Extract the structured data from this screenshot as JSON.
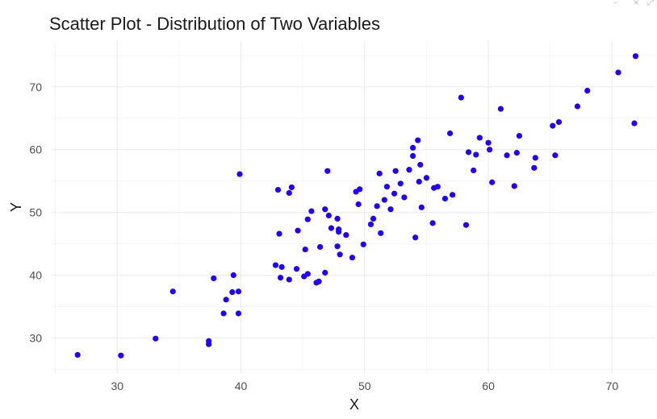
{
  "chart_data": {
    "type": "scatter",
    "title": "Scatter Plot - Distribution of Two Variables",
    "xlabel": "X",
    "ylabel": "Y",
    "xlim": [
      24.7,
      73.5
    ],
    "ylim": [
      24.4,
      77.3
    ],
    "xticks": [
      30,
      40,
      50,
      60,
      70
    ],
    "yticks": [
      30,
      40,
      50,
      60,
      70
    ],
    "grid": true,
    "legend": "none",
    "point_color": "#1f00ff",
    "series": [
      {
        "points": [
          [
            26.8,
            27.3
          ],
          [
            30.3,
            27.2
          ],
          [
            33.1,
            29.9
          ],
          [
            34.5,
            37.4
          ],
          [
            37.4,
            29.0
          ],
          [
            37.4,
            29.5
          ],
          [
            37.8,
            39.5
          ],
          [
            38.6,
            33.9
          ],
          [
            38.8,
            36.1
          ],
          [
            39.3,
            37.3
          ],
          [
            39.4,
            40.0
          ],
          [
            39.8,
            37.4
          ],
          [
            39.8,
            33.9
          ],
          [
            39.9,
            56.1
          ],
          [
            42.8,
            41.6
          ],
          [
            43.0,
            53.6
          ],
          [
            43.1,
            46.6
          ],
          [
            43.2,
            39.6
          ],
          [
            43.3,
            41.3
          ],
          [
            43.9,
            53.1
          ],
          [
            43.9,
            39.3
          ],
          [
            44.1,
            54.0
          ],
          [
            44.5,
            41.0
          ],
          [
            44.6,
            47.1
          ],
          [
            45.1,
            39.8
          ],
          [
            45.2,
            44.1
          ],
          [
            45.4,
            40.2
          ],
          [
            45.4,
            48.9
          ],
          [
            45.7,
            50.2
          ],
          [
            46.1,
            38.8
          ],
          [
            46.3,
            39.0
          ],
          [
            46.4,
            44.5
          ],
          [
            46.8,
            40.4
          ],
          [
            46.8,
            50.5
          ],
          [
            47.0,
            56.6
          ],
          [
            47.1,
            49.5
          ],
          [
            47.3,
            47.5
          ],
          [
            47.8,
            44.6
          ],
          [
            47.8,
            49.0
          ],
          [
            47.9,
            47.3
          ],
          [
            47.9,
            46.9
          ],
          [
            48.0,
            43.3
          ],
          [
            48.5,
            46.4
          ],
          [
            49.0,
            42.8
          ],
          [
            49.3,
            53.3
          ],
          [
            49.5,
            51.3
          ],
          [
            49.6,
            53.7
          ],
          [
            49.9,
            44.9
          ],
          [
            50.5,
            48.1
          ],
          [
            50.7,
            49.0
          ],
          [
            51.0,
            51.0
          ],
          [
            51.2,
            56.2
          ],
          [
            51.3,
            46.7
          ],
          [
            51.6,
            52.0
          ],
          [
            51.8,
            54.1
          ],
          [
            52.1,
            50.5
          ],
          [
            52.5,
            56.6
          ],
          [
            52.4,
            53.0
          ],
          [
            52.9,
            54.6
          ],
          [
            53.2,
            52.4
          ],
          [
            53.6,
            56.8
          ],
          [
            53.9,
            60.3
          ],
          [
            53.9,
            59.0
          ],
          [
            54.1,
            46.0
          ],
          [
            54.3,
            61.5
          ],
          [
            54.4,
            54.9
          ],
          [
            54.5,
            57.6
          ],
          [
            54.6,
            50.8
          ],
          [
            55.0,
            55.5
          ],
          [
            55.5,
            48.3
          ],
          [
            55.6,
            53.9
          ],
          [
            55.9,
            54.1
          ],
          [
            56.5,
            52.2
          ],
          [
            56.9,
            62.6
          ],
          [
            57.1,
            52.8
          ],
          [
            57.8,
            68.3
          ],
          [
            58.2,
            48.0
          ],
          [
            58.4,
            59.6
          ],
          [
            58.8,
            56.7
          ],
          [
            59.0,
            59.2
          ],
          [
            59.3,
            61.9
          ],
          [
            60.0,
            61.1
          ],
          [
            60.1,
            60.0
          ],
          [
            60.3,
            54.8
          ],
          [
            61.0,
            66.5
          ],
          [
            61.5,
            59.1
          ],
          [
            62.1,
            54.2
          ],
          [
            62.3,
            59.5
          ],
          [
            62.5,
            62.2
          ],
          [
            63.7,
            57.1
          ],
          [
            63.8,
            58.7
          ],
          [
            65.2,
            63.8
          ],
          [
            65.4,
            59.1
          ],
          [
            65.7,
            64.4
          ],
          [
            67.2,
            66.9
          ],
          [
            68.0,
            69.4
          ],
          [
            70.5,
            72.3
          ],
          [
            71.8,
            64.2
          ],
          [
            71.9,
            74.9
          ]
        ]
      }
    ]
  }
}
